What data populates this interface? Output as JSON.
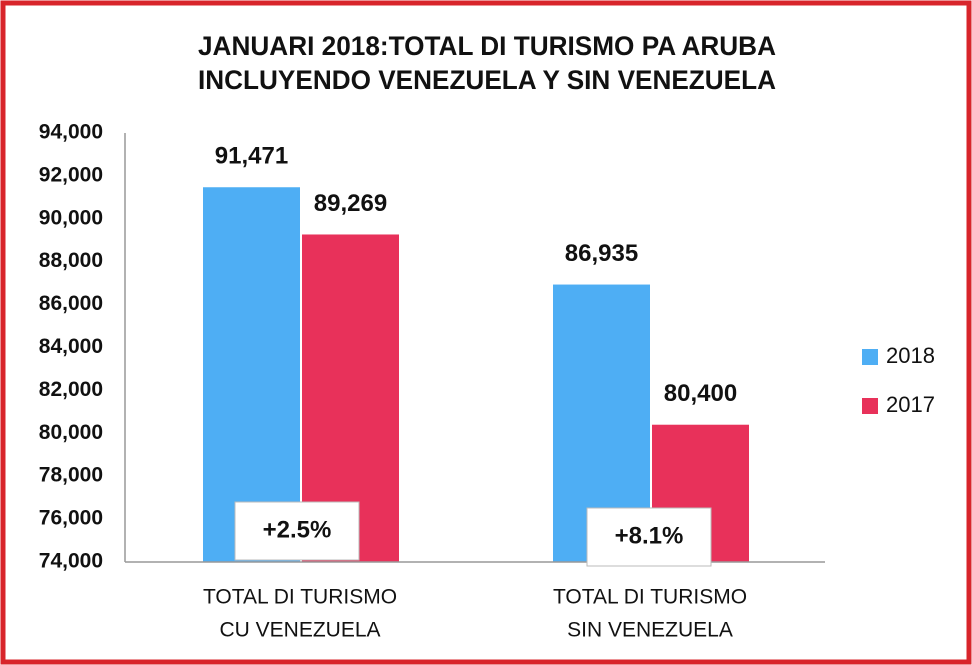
{
  "chart_data": {
    "type": "bar",
    "title": [
      "JANUARI 2018:TOTAL DI TURISMO PA ARUBA",
      "INCLUYENDO VENEZUELA Y SIN VENEZUELA"
    ],
    "categories": [
      [
        "TOTAL DI TURISMO",
        "CU VENEZUELA"
      ],
      [
        "TOTAL DI TURISMO",
        "SIN VENEZUELA"
      ]
    ],
    "series": [
      {
        "name": "2018",
        "color": "#4eaef4",
        "values": [
          91471,
          86935
        ],
        "value_labels": [
          "91,471",
          "86,935"
        ]
      },
      {
        "name": "2017",
        "color": "#e8315a",
        "values": [
          89269,
          80400
        ],
        "value_labels": [
          "89,269",
          "80,400"
        ]
      }
    ],
    "annotations": [
      "+2.5%",
      "+8.1%"
    ],
    "ylim": [
      74000,
      94000
    ],
    "yticks": [
      {
        "value": 74000,
        "label": "74,000"
      },
      {
        "value": 76000,
        "label": "76,000"
      },
      {
        "value": 78000,
        "label": "78,000"
      },
      {
        "value": 80000,
        "label": "80,000"
      },
      {
        "value": 82000,
        "label": "82,000"
      },
      {
        "value": 84000,
        "label": "84,000"
      },
      {
        "value": 86000,
        "label": "86,000"
      },
      {
        "value": 88000,
        "label": "88,000"
      },
      {
        "value": 90000,
        "label": "90,000"
      },
      {
        "value": 92000,
        "label": "92,000"
      },
      {
        "value": 94000,
        "label": "94,000"
      }
    ],
    "grid": false,
    "legend": "right"
  }
}
